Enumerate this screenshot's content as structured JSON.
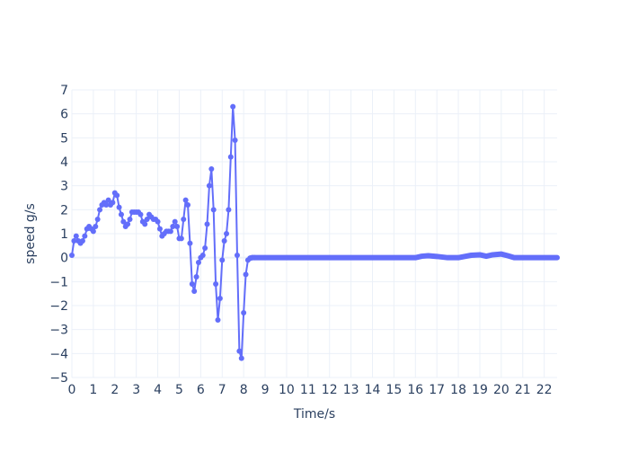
{
  "chart_data": {
    "type": "line",
    "title": "",
    "xlabel": "Time/s",
    "ylabel": "speed g/s",
    "xlim": [
      0,
      22.6
    ],
    "ylim": [
      -5,
      7
    ],
    "grid": true,
    "legend": "none",
    "x_ticks": [
      0,
      1,
      2,
      3,
      4,
      5,
      6,
      7,
      8,
      9,
      10,
      11,
      12,
      13,
      14,
      15,
      16,
      17,
      18,
      19,
      20,
      21,
      22
    ],
    "y_ticks": [
      -5,
      -4,
      -3,
      -2,
      -1,
      0,
      1,
      2,
      3,
      4,
      5,
      6,
      7
    ],
    "colors": {
      "series": "#636efa",
      "grid": "#ebf0f8",
      "zeroline": "#ebf0f8",
      "text": "#2a3f5f",
      "background": "#ffffff"
    },
    "series": [
      {
        "x": [
          0,
          0.1,
          0.2,
          0.3,
          0.4,
          0.5,
          0.6,
          0.7,
          0.8,
          0.9,
          1.0,
          1.1,
          1.2,
          1.3,
          1.4,
          1.5,
          1.6,
          1.7,
          1.8,
          1.9,
          2.0,
          2.1,
          2.2,
          2.3,
          2.4,
          2.5,
          2.6,
          2.7,
          2.8,
          2.9,
          3.0,
          3.1,
          3.2,
          3.3,
          3.4,
          3.5,
          3.6,
          3.7,
          3.8,
          3.9,
          4.0,
          4.1,
          4.2,
          4.3,
          4.4,
          4.5,
          4.6,
          4.7,
          4.8,
          4.9,
          5.0,
          5.1,
          5.2,
          5.3,
          5.4,
          5.5,
          5.6,
          5.7,
          5.8,
          5.9,
          6.0,
          6.1,
          6.2,
          6.3,
          6.4,
          6.5,
          6.6,
          6.7,
          6.8,
          6.9,
          7.0,
          7.1,
          7.2,
          7.3,
          7.4,
          7.5,
          7.6,
          7.7,
          7.8,
          7.9,
          8.0,
          8.1,
          8.2,
          8.3,
          8.4,
          8.5,
          9,
          10,
          11,
          12,
          13,
          14,
          15,
          16,
          16.3,
          16.6,
          17,
          17.5,
          18,
          18.3,
          18.6,
          19,
          19.3,
          19.6,
          20,
          20.3,
          20.6,
          21,
          21.5,
          22,
          22.6
        ],
        "y": [
          0.1,
          0.7,
          0.9,
          0.7,
          0.6,
          0.7,
          0.9,
          1.2,
          1.3,
          1.2,
          1.1,
          1.3,
          1.6,
          2.0,
          2.2,
          2.3,
          2.2,
          2.4,
          2.2,
          2.3,
          2.7,
          2.6,
          2.1,
          1.8,
          1.5,
          1.3,
          1.4,
          1.6,
          1.9,
          1.9,
          1.9,
          1.9,
          1.8,
          1.5,
          1.4,
          1.6,
          1.8,
          1.7,
          1.6,
          1.6,
          1.5,
          1.2,
          0.9,
          1.0,
          1.1,
          1.1,
          1.1,
          1.3,
          1.5,
          1.3,
          0.8,
          0.8,
          1.6,
          2.4,
          2.2,
          0.6,
          -1.1,
          -1.4,
          -0.8,
          -0.2,
          0.0,
          0.1,
          0.4,
          1.4,
          3.0,
          3.7,
          2.0,
          -1.1,
          -2.6,
          -1.7,
          -0.1,
          0.7,
          1.0,
          2.0,
          4.2,
          6.3,
          4.9,
          0.1,
          -3.9,
          -4.2,
          -2.3,
          -0.7,
          -0.1,
          -0.02,
          0.0,
          0.0,
          0.0,
          0.0,
          0.0,
          0.0,
          0.0,
          0.0,
          0.0,
          0.0,
          0.06,
          0.08,
          0.05,
          0.0,
          0.0,
          0.05,
          0.1,
          0.12,
          0.06,
          0.12,
          0.15,
          0.08,
          0.0,
          0.0,
          0.0,
          0.0,
          0.0
        ]
      }
    ]
  }
}
